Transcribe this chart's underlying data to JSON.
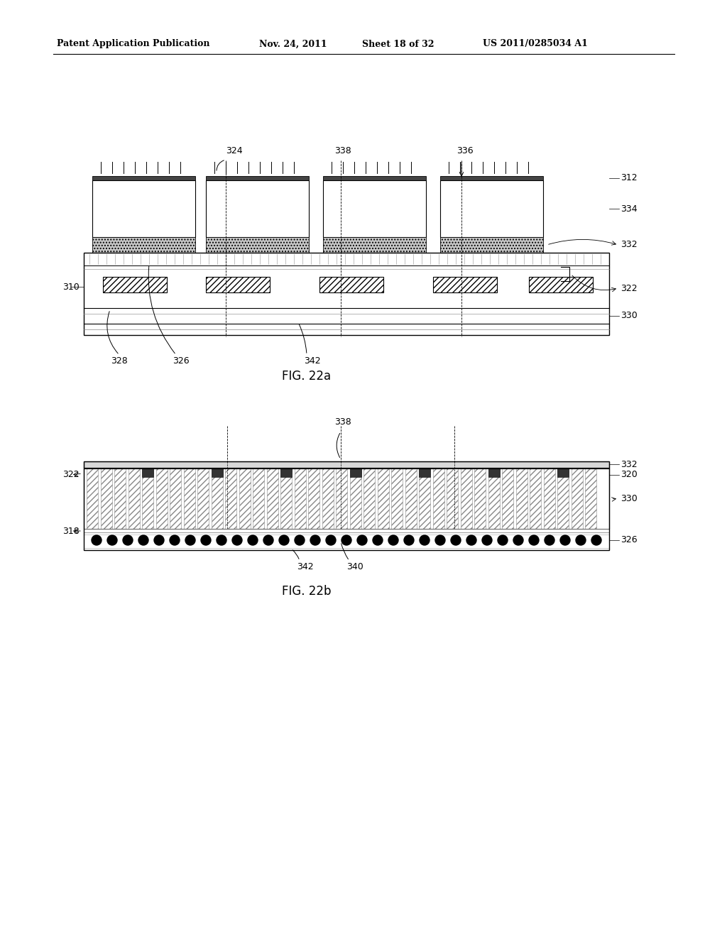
{
  "bg_color": "#ffffff",
  "header_text": "Patent Application Publication",
  "header_date": "Nov. 24, 2011",
  "header_sheet": "Sheet 18 of 32",
  "header_patent": "US 2011/0285034 A1",
  "fig22a_label": "FIG. 22a",
  "fig22b_label": "FIG. 22b",
  "black": "#000000",
  "light_gray": "#d0d0d0",
  "mid_gray": "#999999",
  "dark": "#333333"
}
